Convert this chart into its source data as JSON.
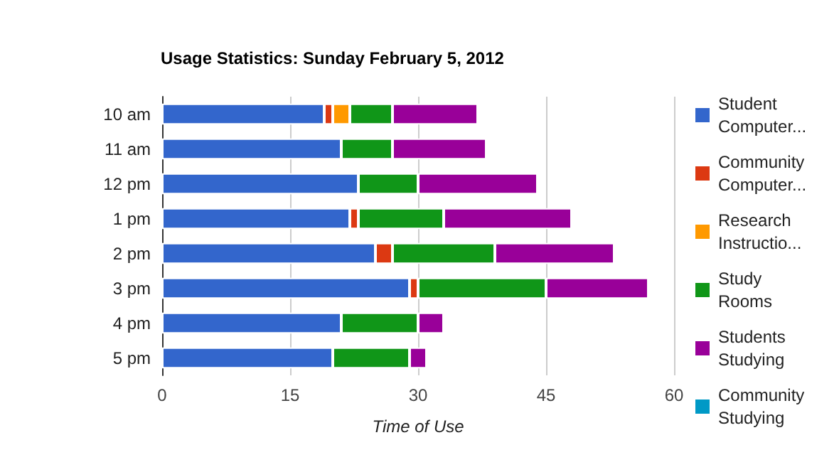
{
  "chart_data": {
    "type": "bar",
    "orientation": "horizontal",
    "stacked": true,
    "title": "Usage Statistics: Sunday February 5, 2012",
    "xlabel": "Time of Use",
    "categories": [
      "10 am",
      "11 am",
      "12 pm",
      "1 pm",
      "2 pm",
      "3 pm",
      "4 pm",
      "5 pm"
    ],
    "series": [
      {
        "name": "Student Computer...",
        "color": "#3366cc",
        "values": [
          19,
          21,
          23,
          22,
          25,
          29,
          21,
          20
        ]
      },
      {
        "name": "Community Computer...",
        "color": "#dc3912",
        "values": [
          1,
          0,
          0,
          1,
          2,
          1,
          0,
          0
        ]
      },
      {
        "name": "Research Instructio...",
        "color": "#ff9900",
        "values": [
          2,
          0,
          0,
          0,
          0,
          0,
          0,
          0
        ]
      },
      {
        "name": "Study Rooms",
        "color": "#109618",
        "values": [
          5,
          6,
          7,
          10,
          12,
          15,
          9,
          9
        ]
      },
      {
        "name": "Students Studying",
        "color": "#990099",
        "values": [
          10,
          11,
          14,
          15,
          14,
          12,
          3,
          2
        ]
      },
      {
        "name": "Community Studying",
        "color": "#0099c6",
        "values": [
          0,
          0,
          0,
          0,
          0,
          0,
          0,
          0
        ]
      }
    ],
    "xlim": [
      0,
      60
    ],
    "xticks": [
      0,
      15,
      30,
      45,
      60
    ],
    "grid": "x",
    "legend": "right"
  }
}
